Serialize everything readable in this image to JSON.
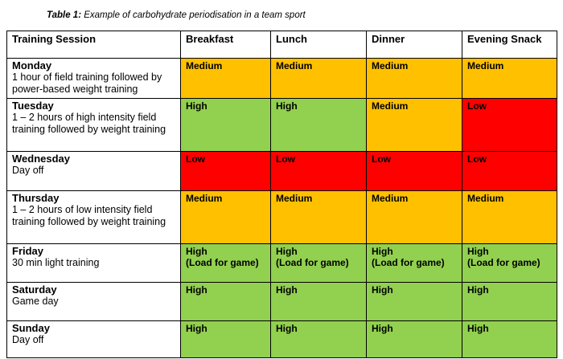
{
  "caption": {
    "label": "Table 1:",
    "text": " Example of carbohydrate periodisation in a team sport"
  },
  "headers": [
    "Training Session",
    "Breakfast",
    "Lunch",
    "Dinner",
    "Evening Snack"
  ],
  "rows": [
    {
      "day": "Monday",
      "desc": "1 hour of field training followed by power-based weight training",
      "levels": [
        "Medium",
        "Medium",
        "Medium",
        "Medium"
      ],
      "sub": [
        "",
        "",
        "",
        ""
      ]
    },
    {
      "day": "Tuesday",
      "desc": "1 – 2 hours of high intensity field training followed by weight training",
      "levels": [
        "High",
        "High",
        "Medium",
        "Low"
      ],
      "sub": [
        "",
        "",
        "",
        ""
      ]
    },
    {
      "day": "Wednesday",
      "desc": "Day off",
      "levels": [
        "Low",
        "Low",
        "Low",
        "Low"
      ],
      "sub": [
        "",
        "",
        "",
        ""
      ]
    },
    {
      "day": "Thursday",
      "desc": "1 – 2 hours of low intensity field training followed by weight training",
      "levels": [
        "Medium",
        "Medium",
        "Medium",
        "Medium"
      ],
      "sub": [
        "",
        "",
        "",
        ""
      ]
    },
    {
      "day": "Friday",
      "desc": "30 min light training",
      "levels": [
        "High",
        "High",
        "High",
        "High"
      ],
      "sub": [
        "(Load for game)",
        "(Load for game)",
        "(Load for game)",
        "(Load for game)"
      ]
    },
    {
      "day": "Saturday",
      "desc": "Game day",
      "levels": [
        "High",
        "High",
        "High",
        "High"
      ],
      "sub": [
        "",
        "",
        "",
        ""
      ]
    },
    {
      "day": "Sunday",
      "desc": "Day off",
      "levels": [
        "High",
        "High",
        "High",
        "High"
      ],
      "sub": [
        "",
        "",
        "",
        ""
      ]
    }
  ],
  "colors": {
    "High": "#92d050",
    "Medium": "#ffc000",
    "Low": "#ff0000"
  }
}
